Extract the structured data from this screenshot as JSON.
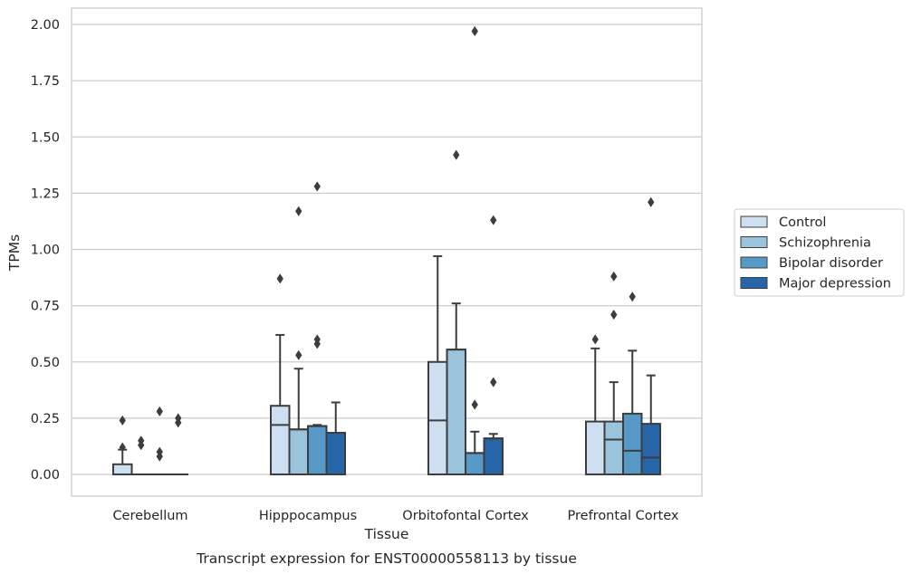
{
  "caption": "Transcript expression for ENST00000558113 by tissue",
  "chart_data": {
    "type": "box",
    "title": "",
    "xlabel": "Tissue",
    "ylabel": "TPMs",
    "ylim": [
      -0.1,
      2.07
    ],
    "yticks": [
      0.0,
      0.25,
      0.5,
      0.75,
      1.0,
      1.25,
      1.5,
      1.75,
      2.0
    ],
    "ytick_labels": [
      "0.00",
      "0.25",
      "0.50",
      "0.75",
      "1.00",
      "1.25",
      "1.50",
      "1.75",
      "2.00"
    ],
    "grid": "horizontal",
    "legend_position": "right",
    "categories": [
      "Cerebellum",
      "Hipppocampus",
      "Orbitofontal Cortex",
      "Prefrontal Cortex"
    ],
    "series": [
      {
        "name": "Control",
        "color": "#cddff0",
        "boxes": [
          {
            "q1": 0.0,
            "median": 0.0,
            "q3": 0.045,
            "whislo": 0.0,
            "whishi": 0.11,
            "fliers": [
              0.12,
              0.24
            ]
          },
          {
            "q1": 0.0,
            "median": 0.22,
            "q3": 0.305,
            "whislo": 0.0,
            "whishi": 0.62,
            "fliers": [
              0.87
            ]
          },
          {
            "q1": 0.0,
            "median": 0.24,
            "q3": 0.5,
            "whislo": 0.0,
            "whishi": 0.97,
            "fliers": []
          },
          {
            "q1": 0.0,
            "median": 0.0,
            "q3": 0.235,
            "whislo": 0.0,
            "whishi": 0.56,
            "fliers": [
              0.6
            ]
          }
        ]
      },
      {
        "name": "Schizophrenia",
        "color": "#9ac3dc",
        "boxes": [
          {
            "q1": 0.0,
            "median": 0.0,
            "q3": 0.0,
            "whislo": 0.0,
            "whishi": 0.0,
            "fliers": [
              0.13,
              0.15
            ]
          },
          {
            "q1": 0.0,
            "median": 0.2,
            "q3": 0.2,
            "whislo": 0.0,
            "whishi": 0.47,
            "fliers": [
              0.53,
              1.17
            ]
          },
          {
            "q1": 0.0,
            "median": 0.555,
            "q3": 0.555,
            "whislo": 0.0,
            "whishi": 0.76,
            "fliers": [
              1.42
            ]
          },
          {
            "q1": 0.0,
            "median": 0.155,
            "q3": 0.235,
            "whislo": 0.0,
            "whishi": 0.41,
            "fliers": [
              0.71,
              0.88
            ]
          }
        ]
      },
      {
        "name": "Bipolar disorder",
        "color": "#5699c6",
        "boxes": [
          {
            "q1": 0.0,
            "median": 0.0,
            "q3": 0.0,
            "whislo": 0.0,
            "whishi": 0.0,
            "fliers": [
              0.08,
              0.1,
              0.28
            ]
          },
          {
            "q1": 0.0,
            "median": 0.215,
            "q3": 0.215,
            "whislo": 0.0,
            "whishi": 0.22,
            "fliers": [
              0.58,
              0.6,
              1.28
            ]
          },
          {
            "q1": 0.0,
            "median": 0.095,
            "q3": 0.095,
            "whislo": 0.0,
            "whishi": 0.19,
            "fliers": [
              0.31,
              1.97
            ]
          },
          {
            "q1": 0.0,
            "median": 0.105,
            "q3": 0.27,
            "whislo": 0.0,
            "whishi": 0.55,
            "fliers": [
              0.79
            ]
          }
        ]
      },
      {
        "name": "Major depression",
        "color": "#2666a8",
        "boxes": [
          {
            "q1": 0.0,
            "median": 0.0,
            "q3": 0.0,
            "whislo": 0.0,
            "whishi": 0.0,
            "fliers": [
              0.23,
              0.25
            ]
          },
          {
            "q1": 0.0,
            "median": 0.185,
            "q3": 0.185,
            "whislo": 0.0,
            "whishi": 0.32,
            "fliers": []
          },
          {
            "q1": 0.0,
            "median": 0.16,
            "q3": 0.16,
            "whislo": 0.0,
            "whishi": 0.18,
            "fliers": [
              0.41,
              1.13
            ]
          },
          {
            "q1": 0.0,
            "median": 0.075,
            "q3": 0.225,
            "whislo": 0.0,
            "whishi": 0.44,
            "fliers": [
              1.21
            ]
          }
        ]
      }
    ]
  }
}
